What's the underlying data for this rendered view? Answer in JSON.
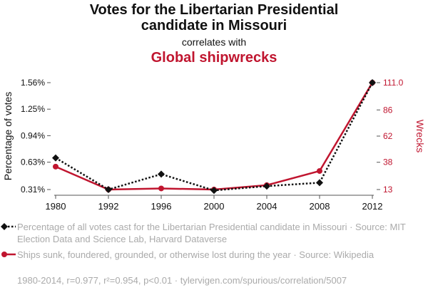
{
  "title_line1": "Votes for the Libertarian Presidential",
  "title_line2": "candidate in Missouri",
  "correlates": "correlates with",
  "subtitle": "Global shipwrecks",
  "legend1": "Percentage of all votes cast for the Libertarian Presidential candidate in Missouri · Source: MIT Election Data and Science Lab, Harvard Dataverse",
  "legend2": "Ships sunk, foundered, grounded, or otherwise lost during the year · Source: Wikipedia",
  "footer": "1980-2014, r=0.977, r²=0.954, p<0.01 · tylervigen.com/spurious/correlation/5007",
  "colors": {
    "votes": "#111111",
    "wrecks": "#c0152f",
    "axis": "#555555"
  },
  "chart_data": {
    "type": "line",
    "x": [
      1980,
      1992,
      1996,
      2000,
      2004,
      2008,
      2012
    ],
    "x_tick_labels": [
      "1980",
      "1992",
      "1996",
      "2000",
      "2004",
      "2008",
      "2012"
    ],
    "series": [
      {
        "name": "Votes for the Libertarian Presidential candidate in Missouri",
        "axis": "left",
        "values": [
          0.68,
          0.31,
          0.49,
          0.3,
          0.35,
          0.39,
          1.56
        ],
        "style": "dotted",
        "marker": "diamond"
      },
      {
        "name": "Global shipwrecks",
        "axis": "right",
        "values": [
          34,
          13,
          14,
          13,
          17,
          30,
          111
        ]
      }
    ],
    "left_axis": {
      "label": "Percentage of votes",
      "ticks": [
        0.31,
        0.63,
        0.94,
        1.25,
        1.56
      ],
      "tick_labels": [
        "0.31%",
        "0.63%",
        "0.94%",
        "1.25%",
        "1.56%"
      ],
      "ylim": [
        0.31,
        1.56
      ]
    },
    "right_axis": {
      "label": "Wrecks",
      "ticks": [
        13,
        38,
        62,
        86,
        111
      ],
      "tick_labels": [
        "13",
        "38",
        "62",
        "86",
        "111.0"
      ],
      "ylim": [
        13,
        111
      ]
    },
    "grid": false
  }
}
